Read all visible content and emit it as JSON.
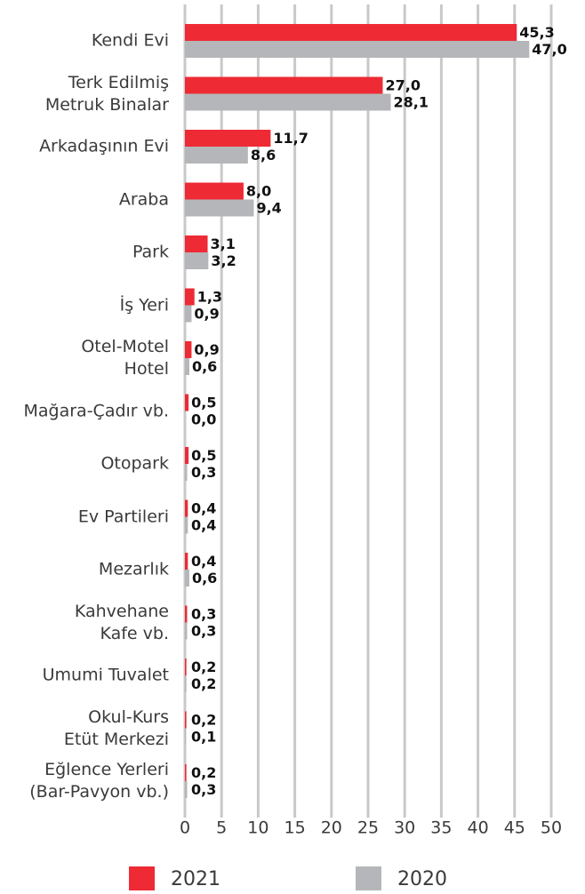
{
  "chart_data": {
    "type": "bar",
    "orientation": "horizontal",
    "categories": [
      "Kendi Evi",
      "Terk Edilmiş\nMetruk Binalar",
      "Arkadaşının Evi",
      "Araba",
      "Park",
      "İş Yeri",
      "Otel-Motel\nHotel",
      "Mağara-Çadır vb.",
      "Otopark",
      "Ev Partileri",
      "Mezarlık",
      "Kahvehane\nKafe vb.",
      "Umumi Tuvalet",
      "Okul-Kurs\nEtüt Merkezi",
      "Eğlence Yerleri\n(Bar-Pavyon vb.)"
    ],
    "series": [
      {
        "name": "2021",
        "color": "#ee2a35",
        "values": [
          45.3,
          27.0,
          11.7,
          8.0,
          3.1,
          1.3,
          0.9,
          0.5,
          0.5,
          0.4,
          0.4,
          0.3,
          0.2,
          0.2,
          0.2
        ],
        "value_labels": [
          "45,3",
          "27,0",
          "11,7",
          "8,0",
          "3,1",
          "1,3",
          "0,9",
          "0,5",
          "0,5",
          "0,4",
          "0,4",
          "0,3",
          "0,2",
          "0,2",
          "0,2"
        ]
      },
      {
        "name": "2020",
        "color": "#b4b6b9",
        "values": [
          47.0,
          28.1,
          8.6,
          9.4,
          3.2,
          0.9,
          0.6,
          0.0,
          0.3,
          0.4,
          0.6,
          0.3,
          0.2,
          0.1,
          0.3
        ],
        "value_labels": [
          "47,0",
          "28,1",
          "8,6",
          "9,4",
          "3,2",
          "0,9",
          "0,6",
          "0,0",
          "0,3",
          "0,4",
          "0,6",
          "0,3",
          "0,2",
          "0,1",
          "0,3"
        ]
      }
    ],
    "xlim": [
      0,
      50
    ],
    "xticks": [
      0,
      5,
      10,
      15,
      20,
      25,
      30,
      35,
      40,
      45,
      50
    ],
    "grid": true
  }
}
